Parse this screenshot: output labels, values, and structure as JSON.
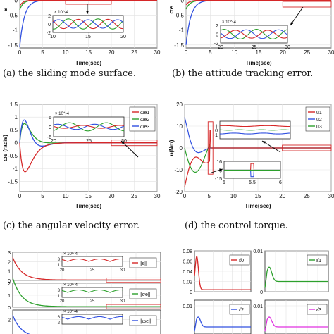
{
  "captions": {
    "a": "(a) the sliding mode surface.",
    "b": "(b) the attitude tracking error.",
    "c": "(c) the angular velocity error.",
    "d": "(d) the control torque."
  },
  "colors": {
    "red": "#d62728",
    "green": "#2ca02c",
    "blue": "#3050e0",
    "magenta": "#e030e0",
    "arrow": "#000000"
  },
  "chart_data": [
    {
      "id": "a",
      "type": "line",
      "title": "",
      "xlabel": "Time(sec)",
      "ylabel": "s",
      "xlim": [
        0,
        30
      ],
      "ylim": [
        -1.6,
        0.15
      ],
      "yticks": [
        -1.5,
        -1,
        -0.5,
        0
      ],
      "xticks": [
        0,
        5,
        10,
        15,
        20,
        25,
        30
      ],
      "inset": {
        "xlim": [
          10,
          20
        ],
        "ylim": [
          -2,
          2
        ],
        "xticks": [
          10,
          15,
          20
        ],
        "yticks": [
          -2,
          0,
          2
        ],
        "exponent": "× 10^-4"
      }
    },
    {
      "id": "b",
      "type": "line",
      "title": "",
      "xlabel": "Time(sec)",
      "ylabel": "σe",
      "xlim": [
        0,
        30
      ],
      "ylim": [
        -1.6,
        0.15
      ],
      "yticks": [
        -1.5,
        -1,
        -0.5,
        0
      ],
      "xticks": [
        0,
        5,
        10,
        15,
        20,
        25,
        30
      ],
      "inset": {
        "xlim": [
          20,
          30
        ],
        "ylim": [
          -2,
          2
        ],
        "xticks": [
          20,
          25,
          30
        ],
        "yticks": [
          -2,
          0,
          2
        ],
        "exponent": "× 10^-4"
      }
    },
    {
      "id": "c",
      "type": "line",
      "title": "",
      "xlabel": "Time(sec)",
      "ylabel": "ωe (rad/s)",
      "xlim": [
        0,
        30
      ],
      "ylim": [
        -1.9,
        1.5
      ],
      "yticks": [
        -1.5,
        -1,
        -0.5,
        0,
        0.5,
        1,
        1.5
      ],
      "xticks": [
        0,
        5,
        10,
        15,
        20,
        25,
        30
      ],
      "legend": [
        "ωe1",
        "ωe2",
        "ωe3"
      ],
      "inset": {
        "xlim": [
          20,
          30
        ],
        "ylim": [
          -6,
          6
        ],
        "xticks": [
          20,
          25,
          30
        ],
        "yticks": [
          -6,
          0,
          6
        ],
        "exponent": "× 10^-4"
      }
    },
    {
      "id": "d",
      "type": "line",
      "title": "",
      "xlabel": "Time(sec)",
      "ylabel": "u(Nm)",
      "xlim": [
        0,
        30
      ],
      "ylim": [
        -20,
        20
      ],
      "yticks": [
        -20,
        -10,
        0,
        10,
        20
      ],
      "xticks": [
        0,
        5,
        10,
        15,
        20,
        25,
        30
      ],
      "legend": [
        "u1",
        "u2",
        "u3"
      ],
      "inset1": {
        "xlim": [
          20,
          30
        ],
        "ylim": [
          -2,
          2
        ],
        "yticks": [
          -1,
          0,
          1
        ]
      },
      "inset2": {
        "xlim": [
          5,
          6
        ],
        "ylim": [
          -15,
          16
        ],
        "xticks": [
          5,
          5.5,
          6
        ],
        "yticks": [
          -15,
          0,
          16
        ]
      }
    },
    {
      "id": "e",
      "type": "line",
      "title": "",
      "legend": [
        "||s||",
        "||σe||",
        "||ωe||"
      ],
      "panels": [
        {
          "yticks": [
            0,
            1,
            2,
            3
          ],
          "inset_xticks": [
            20,
            25,
            30
          ],
          "inset_yticks": [
            1,
            3
          ],
          "exponent": "× 10^-4"
        },
        {
          "yticks": [
            0,
            1,
            2
          ],
          "inset_xticks": [
            20,
            25,
            30
          ],
          "inset_yticks": [
            1,
            3
          ],
          "exponent": "× 10^-4"
        },
        {
          "yticks": [
            0,
            2
          ],
          "inset_xticks": [],
          "inset_yticks": [
            2,
            6
          ],
          "exponent": "× 10^-4"
        }
      ]
    },
    {
      "id": "f",
      "type": "line",
      "title": "",
      "panels": [
        {
          "legend": "ε̂0",
          "yticks": [
            0,
            0.02,
            0.04,
            0.06,
            0.08
          ]
        },
        {
          "legend": "ε̂1",
          "yticks": [
            0,
            0.01
          ]
        },
        {
          "legend": "ε̂2",
          "yticks": [
            0.01
          ]
        },
        {
          "legend": "ε̂3",
          "yticks": [
            0.01
          ]
        }
      ]
    }
  ]
}
